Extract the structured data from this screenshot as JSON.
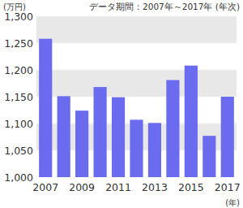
{
  "chart_data": {
    "type": "bar",
    "subtitle": "データ期間：2007年～2017年 (年次)",
    "y_label": "(万円)",
    "x_label": "(年)",
    "categories": [
      "2007",
      null,
      "2009",
      null,
      "2011",
      null,
      "2013",
      null,
      "2015",
      null,
      "2017"
    ],
    "values": [
      1258,
      1151,
      1124,
      1168,
      1149,
      1107,
      1101,
      1181,
      1208,
      1077,
      1150
    ],
    "color": "#6b6bf0",
    "ylim": [
      1000,
      1300
    ],
    "yticks": [
      {
        "value": 1000,
        "label": "1,000"
      },
      {
        "value": 1050,
        "label": "1,050"
      },
      {
        "value": 1100,
        "label": "1,100"
      },
      {
        "value": 1150,
        "label": "1,150"
      },
      {
        "value": 1200,
        "label": "1,200"
      },
      {
        "value": 1250,
        "label": "1,250"
      },
      {
        "value": 1300,
        "label": "1,300"
      }
    ],
    "grid": true
  }
}
